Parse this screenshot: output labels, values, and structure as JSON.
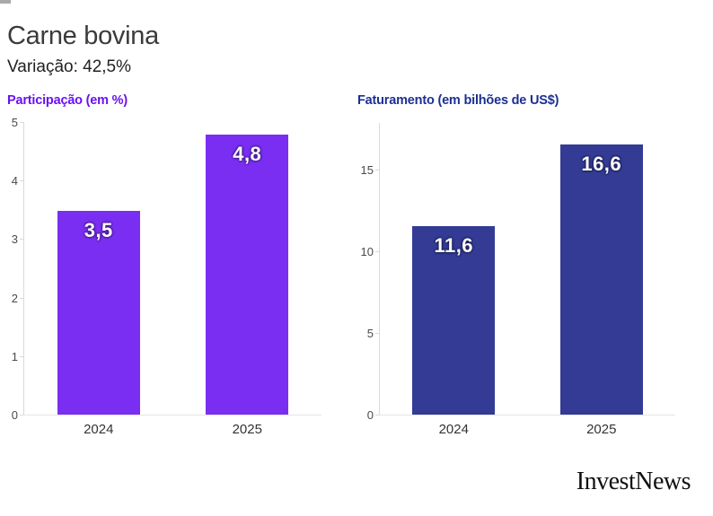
{
  "header": {
    "title": "Carne bovina",
    "subtitle": "Variação: 42,5%"
  },
  "logo": {
    "text": "InvestNews"
  },
  "chart_data": [
    {
      "type": "bar",
      "title": "Participação (em %)",
      "categories": [
        "2024",
        "2025"
      ],
      "values": [
        3.5,
        4.8
      ],
      "value_labels": [
        "3,5",
        "4,8"
      ],
      "yticks": [
        0,
        1,
        2,
        3,
        4,
        5
      ],
      "ylim": [
        0,
        5
      ],
      "xlabel": "",
      "ylabel": "Participação (em %)",
      "grid": false,
      "legend": "none",
      "bar_color": "#7a2ef2",
      "title_color": "#6b10f2"
    },
    {
      "type": "bar",
      "title": "Faturamento (em bilhões de US$)",
      "categories": [
        "2024",
        "2025"
      ],
      "values": [
        11.6,
        16.6
      ],
      "value_labels": [
        "11,6",
        "16,6"
      ],
      "yticks": [
        0,
        5,
        10,
        15
      ],
      "ylim": [
        0,
        17.9
      ],
      "xlabel": "",
      "ylabel": "Faturamento (em bilhões de US$)",
      "grid": false,
      "legend": "none",
      "bar_color": "#333b94",
      "title_color": "#1d2f93"
    }
  ]
}
